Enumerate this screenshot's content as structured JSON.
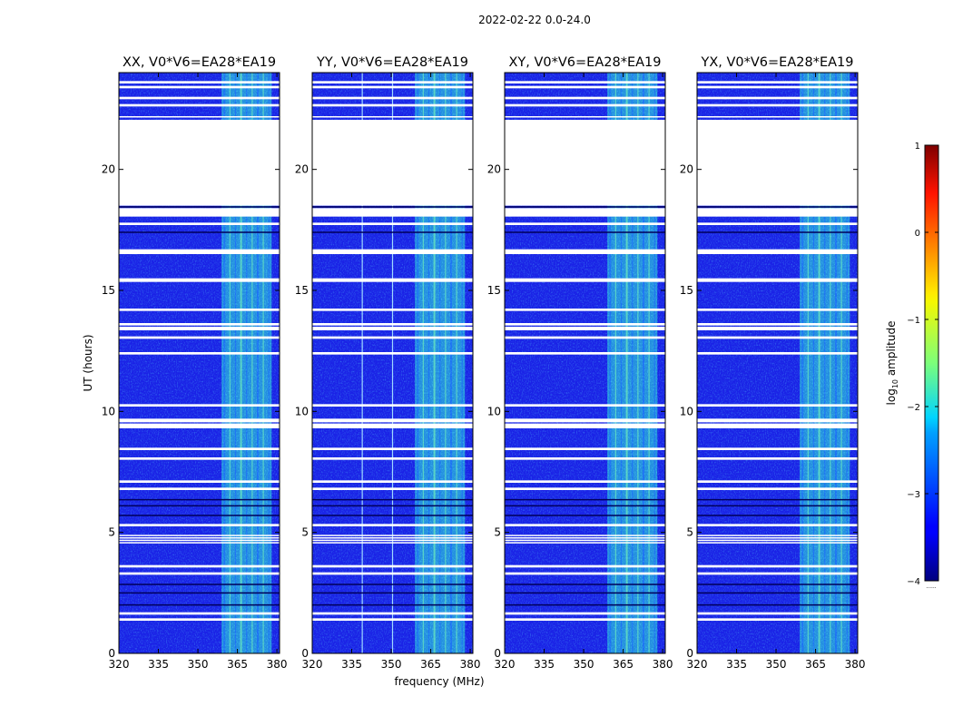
{
  "figure": {
    "suptitle": "2022-02-22 0.0-24.0",
    "xlabel": "frequency (MHz)",
    "ylabel": "UT (hours)",
    "colorbar_label_prefix": "log",
    "colorbar_label_sub": "10",
    "colorbar_label_suffix": " amplitude",
    "colorbar_small_note": "......",
    "colors": {
      "background_blue": "#1a22e6",
      "band_cyan": "#2ee6d8",
      "flag_white": "#ffffff",
      "dark_row": "#00005a"
    }
  },
  "chart_data": [
    {
      "type": "heatmap",
      "title": "XX, V0*V6=EA28*EA19",
      "xlim": [
        320,
        381
      ],
      "ylim": [
        0,
        24
      ],
      "xticks": [
        320,
        335,
        350,
        365,
        380
      ],
      "yticks": [
        0,
        5,
        10,
        15,
        20
      ],
      "bright_band_mhz": [
        359,
        378
      ],
      "vertical_lines_mhz": []
    },
    {
      "type": "heatmap",
      "title": "YY, V0*V6=EA28*EA19",
      "xlim": [
        320,
        381
      ],
      "ylim": [
        0,
        24
      ],
      "xticks": [
        320,
        335,
        350,
        365,
        380
      ],
      "yticks": [
        0,
        5,
        10,
        15,
        20
      ],
      "bright_band_mhz": [
        359,
        378
      ],
      "vertical_lines_mhz": [
        339,
        350.5
      ]
    },
    {
      "type": "heatmap",
      "title": "XY, V0*V6=EA28*EA19",
      "xlim": [
        320,
        381
      ],
      "ylim": [
        0,
        24
      ],
      "xticks": [
        320,
        335,
        350,
        365,
        380
      ],
      "yticks": [
        0,
        5,
        10,
        15,
        20
      ],
      "bright_band_mhz": [
        359,
        378
      ],
      "vertical_lines_mhz": []
    },
    {
      "type": "heatmap",
      "title": "YX, V0*V6=EA28*EA19",
      "xlim": [
        320,
        381
      ],
      "ylim": [
        0,
        24
      ],
      "xticks": [
        320,
        335,
        350,
        365,
        380
      ],
      "yticks": [
        0,
        5,
        10,
        15,
        20
      ],
      "bright_band_mhz": [
        359,
        378
      ],
      "vertical_lines_mhz": []
    }
  ],
  "flagged_ut_ranges": [
    [
      1.35,
      1.45
    ],
    [
      1.6,
      1.7
    ],
    [
      3.25,
      3.35
    ],
    [
      3.55,
      3.65
    ],
    [
      4.55,
      4.6
    ],
    [
      4.65,
      4.7
    ],
    [
      4.75,
      4.8
    ],
    [
      4.85,
      4.9
    ],
    [
      5.25,
      5.35
    ],
    [
      6.75,
      6.85
    ],
    [
      7.05,
      7.15
    ],
    [
      8.0,
      8.1
    ],
    [
      8.4,
      8.5
    ],
    [
      9.3,
      9.5
    ],
    [
      9.55,
      9.7
    ],
    [
      10.2,
      10.3
    ],
    [
      12.35,
      12.45
    ],
    [
      13.0,
      13.1
    ],
    [
      13.35,
      13.5
    ],
    [
      13.55,
      13.65
    ],
    [
      14.15,
      14.25
    ],
    [
      15.35,
      15.5
    ],
    [
      16.5,
      16.7
    ],
    [
      17.7,
      17.8
    ],
    [
      18.05,
      18.4
    ],
    [
      18.5,
      22.05
    ],
    [
      22.15,
      22.2
    ],
    [
      22.6,
      22.7
    ],
    [
      22.9,
      23.0
    ],
    [
      23.35,
      23.45
    ],
    [
      23.55,
      23.65
    ]
  ],
  "dark_ut_rows": [
    2.0,
    2.5,
    2.85,
    5.7,
    6.1,
    6.35,
    17.4,
    18.45
  ],
  "colorbar": {
    "colormap": "jet",
    "range": [
      -4,
      1
    ],
    "ticks": [
      -4,
      -3,
      -2,
      -1,
      0,
      1
    ],
    "tick_labels": [
      "−4",
      "−3",
      "−2",
      "−1",
      "0",
      "1"
    ]
  }
}
